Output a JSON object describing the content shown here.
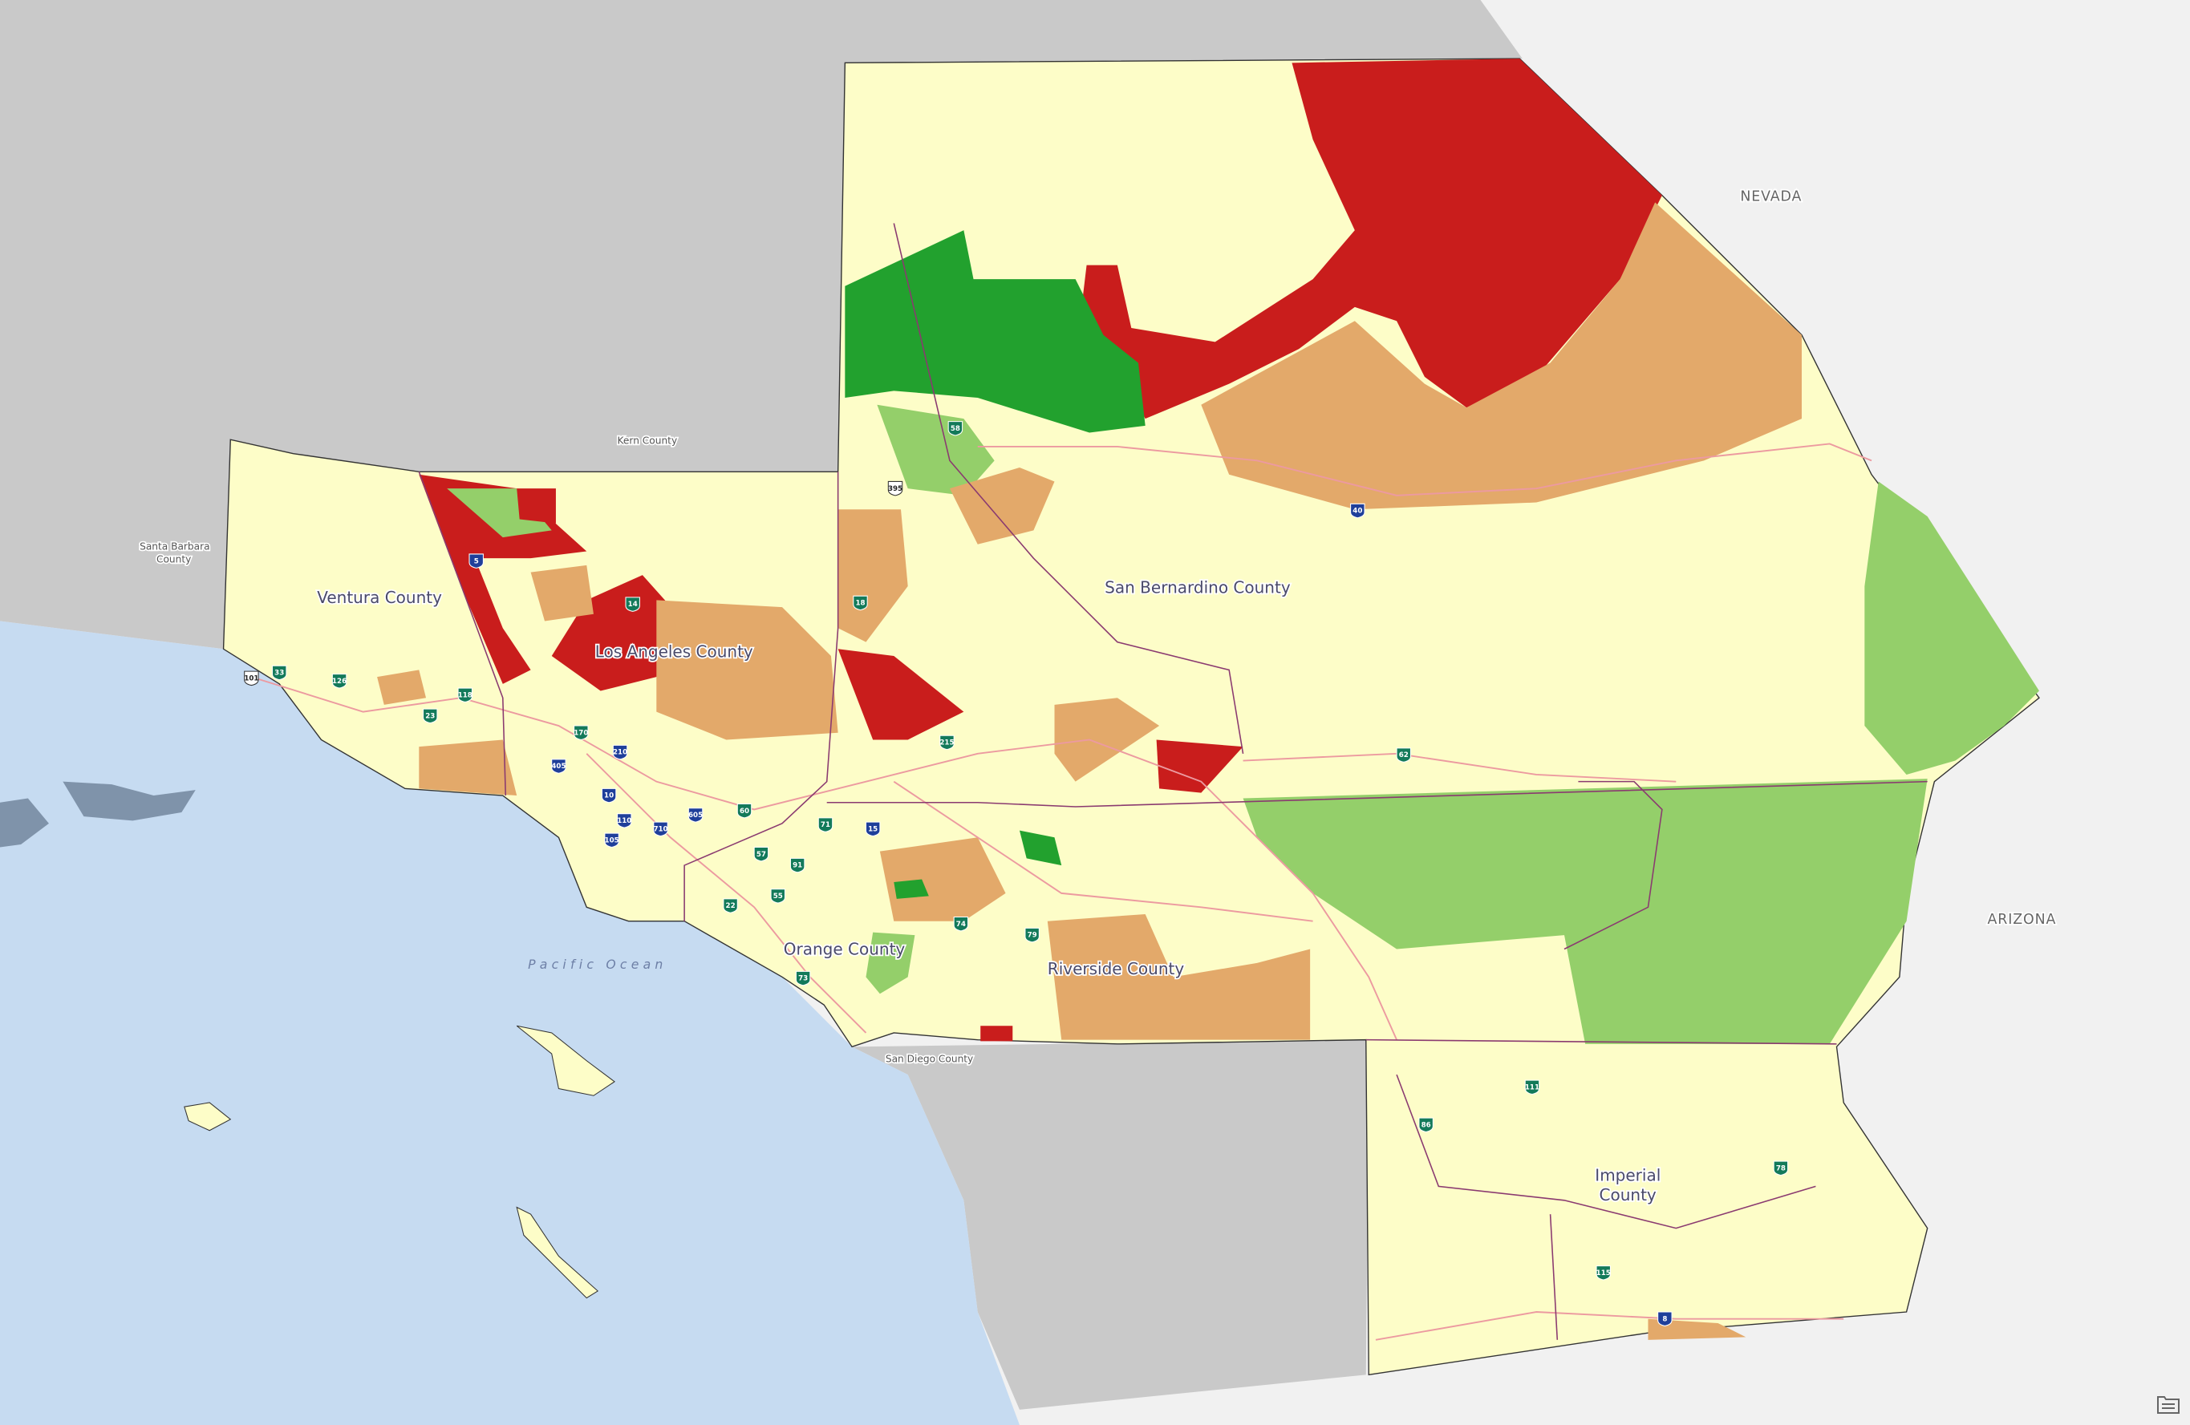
{
  "map": {
    "counties": {
      "ventura": "Ventura County",
      "los_angeles": "Los Angeles County",
      "san_bernardino": "San Bernardino County",
      "orange": "Orange County",
      "riverside": "Riverside County",
      "imperial_line1": "Imperial",
      "imperial_line2": "County",
      "kern": "Kern County",
      "santa_barbara_line1": "Santa Barbara",
      "santa_barbara_line2": "County",
      "san_diego": "San Diego County"
    },
    "states": {
      "nevada": "NEVADA",
      "arizona": "ARIZONA"
    },
    "water": {
      "pacific": "Pacific Ocean"
    },
    "highways": [
      {
        "num": "5",
        "type": "interstate"
      },
      {
        "num": "14",
        "type": "state"
      },
      {
        "num": "210",
        "type": "interstate"
      },
      {
        "num": "405",
        "type": "interstate"
      },
      {
        "num": "10",
        "type": "interstate"
      },
      {
        "num": "110",
        "type": "interstate"
      },
      {
        "num": "105",
        "type": "interstate"
      },
      {
        "num": "710",
        "type": "interstate"
      },
      {
        "num": "605",
        "type": "interstate"
      },
      {
        "num": "60",
        "type": "state"
      },
      {
        "num": "57",
        "type": "state"
      },
      {
        "num": "91",
        "type": "state"
      },
      {
        "num": "55",
        "type": "state"
      },
      {
        "num": "22",
        "type": "state"
      },
      {
        "num": "73",
        "type": "state"
      },
      {
        "num": "71",
        "type": "state"
      },
      {
        "num": "15",
        "type": "interstate"
      },
      {
        "num": "74",
        "type": "state"
      },
      {
        "num": "79",
        "type": "state"
      },
      {
        "num": "215",
        "type": "state"
      },
      {
        "num": "18",
        "type": "state"
      },
      {
        "num": "58",
        "type": "state"
      },
      {
        "num": "395",
        "type": "us"
      },
      {
        "num": "40",
        "type": "interstate"
      },
      {
        "num": "62",
        "type": "state"
      },
      {
        "num": "101",
        "type": "us"
      },
      {
        "num": "33",
        "type": "state"
      },
      {
        "num": "126",
        "type": "state"
      },
      {
        "num": "118",
        "type": "state"
      },
      {
        "num": "23",
        "type": "state"
      },
      {
        "num": "170",
        "type": "state"
      },
      {
        "num": "111",
        "type": "state"
      },
      {
        "num": "86",
        "type": "state"
      },
      {
        "num": "78",
        "type": "state"
      },
      {
        "num": "115",
        "type": "state"
      },
      {
        "num": "8",
        "type": "interstate"
      }
    ],
    "colors": {
      "base": "#fdfdc8",
      "high": "#c91d1c",
      "medium_high": "#e3a96a",
      "low": "#94cf6a",
      "lowest": "#22a12e",
      "ocean": "#c6dbf1",
      "outside_land": "#c9c9c9",
      "road": "#ec9aa0",
      "boundary": "#8a3a70"
    },
    "legend_icon": "legend-icon"
  }
}
